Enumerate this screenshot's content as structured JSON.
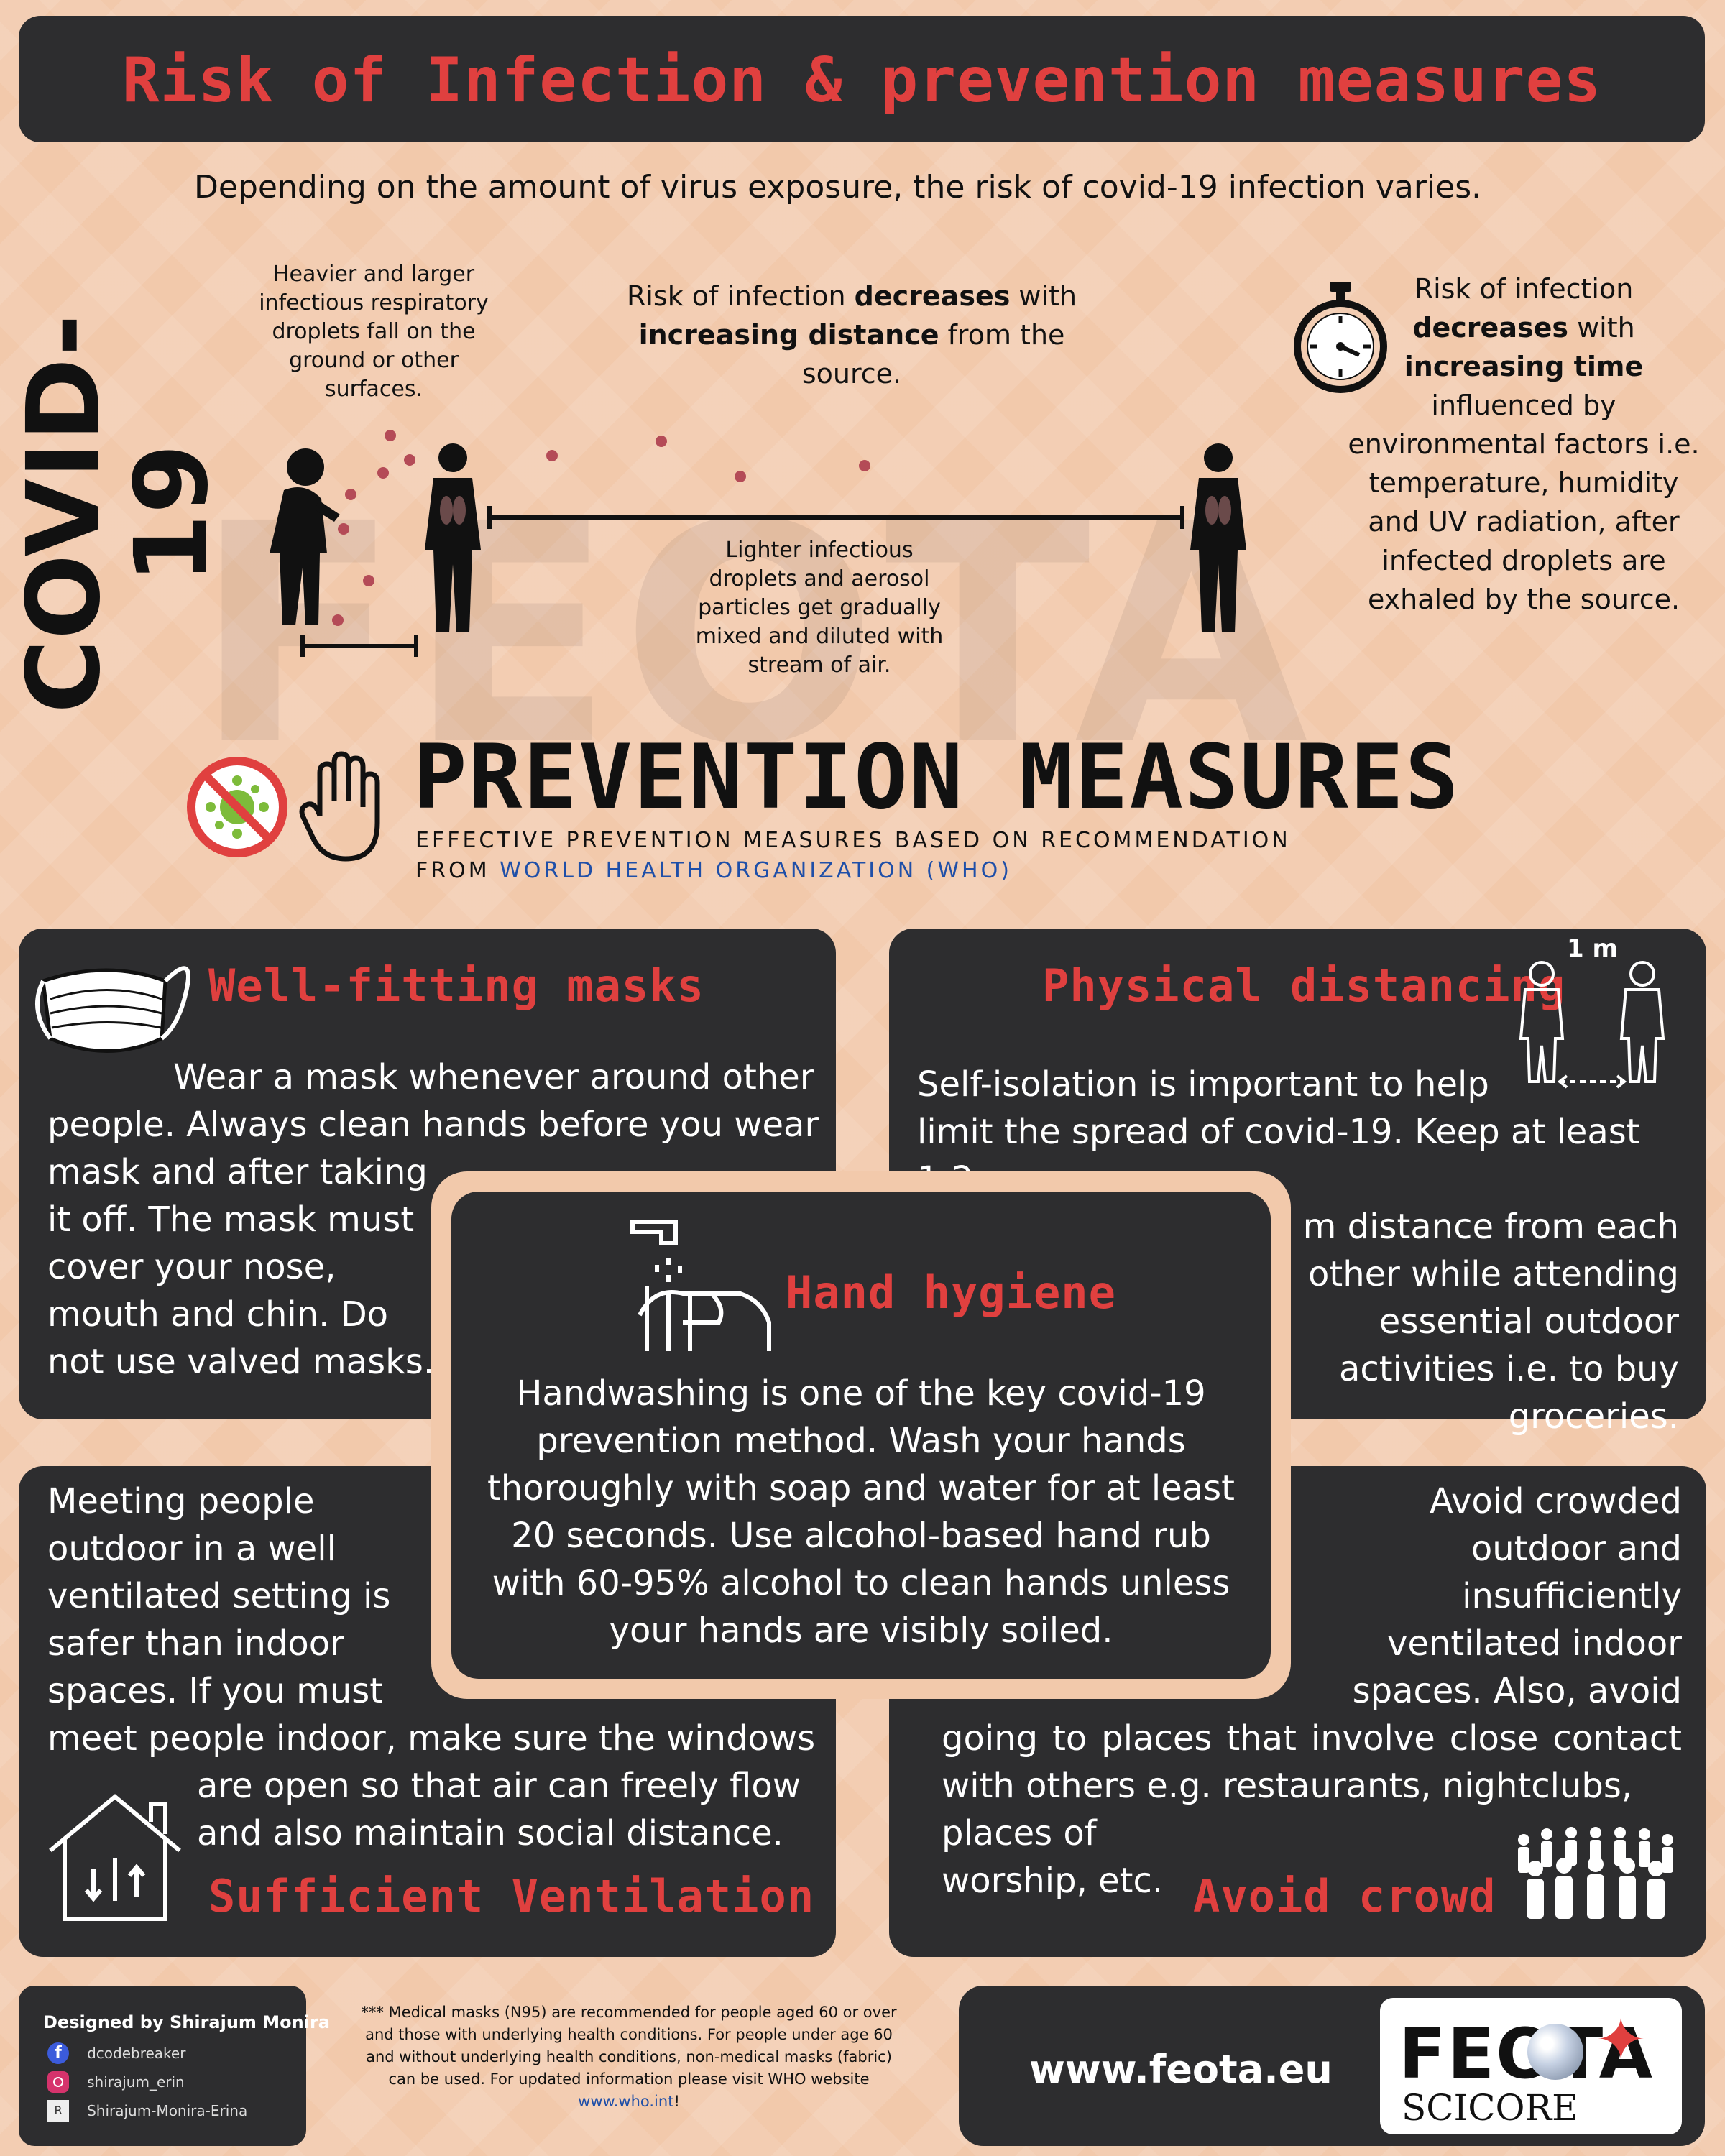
{
  "header": {
    "title": "Risk of Infection & prevention measures"
  },
  "side_label": "COVID-19",
  "watermark": "FEOTA",
  "intro": "Depending on the amount of virus exposure, the risk of covid-19 infection varies.",
  "risk": {
    "heavy_droplets": "Heavier and larger infectious respiratory droplets fall on the ground or other surfaces.",
    "distance": {
      "pre": "Risk of infection ",
      "b1": "decreases",
      "mid": " with ",
      "b2": "increasing distance",
      "post": " from the source."
    },
    "light_droplets": "Lighter infectious droplets and aerosol particles get gradually mixed and diluted with stream of air.",
    "time": {
      "pre": "Risk of infection ",
      "b1": "decreases",
      "mid": " with ",
      "b2": "increasing time",
      "post": " influenced by environmental factors i.e. temperature, humidity and UV radiation, after infected droplets are exhaled by the source."
    }
  },
  "prevention": {
    "title": "PREVENTION MEASURES",
    "sub1": "EFFECTIVE PREVENTION MEASURES BASED ON RECOMMENDATION",
    "sub2_pre": "FROM ",
    "sub2_link": "WORLD HEALTH ORGANIZATION (WHO)"
  },
  "masks": {
    "title": "Well-fitting masks",
    "lines": [
      "Wear a mask whenever around other",
      "people. Always clean hands before you wear",
      "mask and after taking",
      "it off. The mask must",
      "cover your nose,",
      "mouth and chin. Do",
      "not use valved masks."
    ]
  },
  "distancing": {
    "title": "Physical distancing",
    "icon_label": "1 m",
    "lines": [
      "Self-isolation is important to help",
      "limit the spread of covid-19. Keep at least 1-2",
      "m distance from each",
      "other while attending",
      "essential outdoor",
      "activities i.e. to buy",
      "groceries."
    ]
  },
  "hygiene": {
    "title": "Hand hygiene",
    "lines": [
      "Handwashing is one of the key covid-19",
      "prevention method. Wash your hands",
      "thoroughly with soap and water for at least",
      "20 seconds. Use alcohol-based hand rub",
      "with 60-95% alcohol to clean hands unless",
      "your hands are visibly soiled."
    ]
  },
  "ventilation": {
    "title": "Sufficient Ventilation",
    "lines": [
      "Meeting people",
      "outdoor in a well",
      "ventilated setting is",
      "safer than indoor",
      "spaces. If you must",
      "meet people indoor, make sure the windows",
      "are open so that air can freely flow",
      "and also maintain social distance."
    ]
  },
  "crowd": {
    "title": "Avoid crowd",
    "lines": [
      "Avoid crowded",
      "outdoor and",
      "insufficiently",
      "ventilated indoor",
      "spaces. Also, avoid",
      "going to places that involve close contact",
      "with others e.g. restaurants, nightclubs,",
      "places of",
      "worship, etc."
    ]
  },
  "footer": {
    "designed_by": "Designed by Shirajum Monira",
    "social": [
      {
        "icon": "facebook-icon",
        "handle": "dcodebreaker"
      },
      {
        "icon": "instagram-icon",
        "handle": "shirajum_erin"
      },
      {
        "icon": "researchgate-icon",
        "handle": "Shirajum-Monira-Erina"
      }
    ],
    "note": "*** Medical masks (N95) are recommended for people aged 60 or over and those with underlying health conditions. For people under age 60 and without underlying health conditions, non-medical masks (fabric) can be used. For updated information please visit WHO website ",
    "note_link": "www.who.int",
    "note_end": "!",
    "website": "www.feota.eu",
    "logo_top": "FEOTA",
    "logo_bottom": "SCICORE"
  },
  "colors": {
    "accent_red": "#e0403f",
    "panel_dark": "#2d2d2f",
    "background": "#f2c9ab",
    "link_blue": "#1f4fa8"
  }
}
